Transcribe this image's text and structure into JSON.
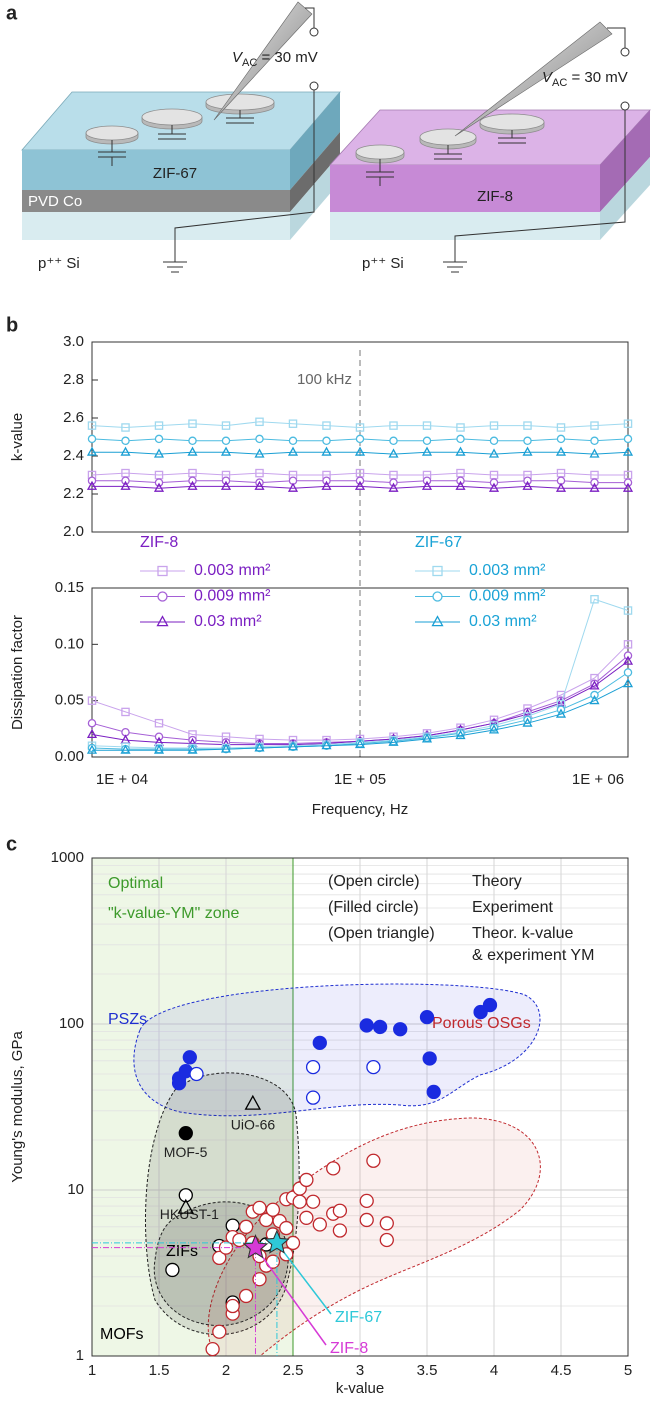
{
  "panel_a": {
    "label": "a",
    "left": {
      "voltage": {
        "symbol": "V",
        "subscript": "AC",
        "rest": " = 30 mV"
      },
      "film": "ZIF-67",
      "metal": "PVD Co",
      "substrate": "p⁺⁺ Si"
    },
    "right": {
      "voltage": {
        "symbol": "V",
        "subscript": "AC",
        "rest": " = 30 mV"
      },
      "film": "ZIF-8",
      "substrate": "p⁺⁺ Si"
    }
  },
  "chart_data": [
    {
      "type": "line",
      "panel_label": "b",
      "x": [
        10000,
        13335,
        17783,
        23714,
        31623,
        42170,
        56234,
        74989,
        100000,
        133352,
        177828,
        237137,
        316228,
        421697,
        562341,
        749894,
        1000000
      ],
      "xlim": [
        10000,
        1000000
      ],
      "log_x": true,
      "xticks": [
        {
          "value": 10000,
          "label": "1E + 04"
        },
        {
          "value": 100000,
          "label": "1E + 05"
        },
        {
          "value": 1000000,
          "label": "1E + 06"
        }
      ],
      "xlabel": "Frequency, Hz",
      "marker_line": {
        "x": 100000,
        "label": "100 kHz"
      },
      "k_axis": {
        "ylabel": "k-value",
        "ylim": [
          2,
          3
        ],
        "yticks": [
          {
            "value": 2,
            "label": "2.0"
          },
          2.2,
          2.4,
          2.6,
          2.8,
          {
            "value": 3,
            "label": "3.0"
          }
        ]
      },
      "df_axis": {
        "ylabel": "Dissipation factor",
        "ylim": [
          0,
          0.15
        ],
        "yticks": [
          {
            "value": 0,
            "label": "0.00"
          },
          0.05,
          {
            "value": 0.1,
            "label": "0.10"
          },
          0.15
        ]
      },
      "groups": [
        {
          "title": "ZIF-8",
          "color": "#7b1fc2",
          "series": [
            {
              "name": "0.003 mm²",
              "color": "#c9a3ec",
              "marker": "square",
              "k_values": [
                2.3,
                2.31,
                2.3,
                2.31,
                2.3,
                2.31,
                2.3,
                2.3,
                2.31,
                2.3,
                2.3,
                2.31,
                2.3,
                2.3,
                2.31,
                2.3,
                2.3
              ],
              "df_values": [
                0.05,
                0.04,
                0.03,
                0.02,
                0.018,
                0.016,
                0.015,
                0.015,
                0.016,
                0.018,
                0.021,
                0.026,
                0.033,
                0.043,
                0.055,
                0.07,
                0.1
              ]
            },
            {
              "name": "0.009 mm²",
              "color": "#a55fd6",
              "marker": "circle",
              "k_values": [
                2.27,
                2.27,
                2.26,
                2.27,
                2.27,
                2.26,
                2.27,
                2.27,
                2.27,
                2.26,
                2.27,
                2.27,
                2.26,
                2.27,
                2.27,
                2.26,
                2.26
              ],
              "df_values": [
                0.03,
                0.022,
                0.018,
                0.015,
                0.013,
                0.012,
                0.012,
                0.013,
                0.014,
                0.016,
                0.019,
                0.024,
                0.03,
                0.04,
                0.05,
                0.065,
                0.09
              ]
            },
            {
              "name": "0.03 mm²",
              "color": "#7b1fc2",
              "marker": "triangle",
              "k_values": [
                2.24,
                2.24,
                2.23,
                2.24,
                2.24,
                2.24,
                2.23,
                2.24,
                2.24,
                2.23,
                2.24,
                2.24,
                2.23,
                2.24,
                2.23,
                2.23,
                2.23
              ],
              "df_values": [
                0.02,
                0.015,
                0.013,
                0.012,
                0.011,
                0.011,
                0.011,
                0.012,
                0.014,
                0.016,
                0.019,
                0.024,
                0.03,
                0.038,
                0.048,
                0.063,
                0.085
              ]
            }
          ]
        },
        {
          "title": "ZIF-67",
          "color": "#1aa3d6",
          "series": [
            {
              "name": "0.003 mm²",
              "color": "#9fd9ef",
              "marker": "square",
              "k_values": [
                2.56,
                2.55,
                2.56,
                2.57,
                2.56,
                2.58,
                2.57,
                2.56,
                2.55,
                2.56,
                2.56,
                2.55,
                2.56,
                2.56,
                2.55,
                2.56,
                2.57
              ],
              "df_values": [
                0.01,
                0.009,
                0.008,
                0.008,
                0.008,
                0.009,
                0.01,
                0.011,
                0.013,
                0.015,
                0.018,
                0.022,
                0.028,
                0.036,
                0.047,
                0.14,
                0.13
              ]
            },
            {
              "name": "0.009 mm²",
              "color": "#4cbbe0",
              "marker": "circle",
              "k_values": [
                2.49,
                2.48,
                2.49,
                2.48,
                2.48,
                2.49,
                2.48,
                2.48,
                2.49,
                2.48,
                2.48,
                2.49,
                2.48,
                2.48,
                2.49,
                2.48,
                2.49
              ],
              "df_values": [
                0.008,
                0.007,
                0.007,
                0.007,
                0.007,
                0.008,
                0.009,
                0.01,
                0.012,
                0.014,
                0.017,
                0.021,
                0.026,
                0.033,
                0.042,
                0.055,
                0.075
              ]
            },
            {
              "name": "0.03 mm²",
              "color": "#1a9fd4",
              "marker": "triangle",
              "k_values": [
                2.42,
                2.42,
                2.41,
                2.42,
                2.42,
                2.41,
                2.42,
                2.42,
                2.42,
                2.41,
                2.42,
                2.42,
                2.41,
                2.42,
                2.42,
                2.41,
                2.42
              ],
              "df_values": [
                0.006,
                0.006,
                0.006,
                0.006,
                0.007,
                0.008,
                0.009,
                0.01,
                0.011,
                0.013,
                0.016,
                0.019,
                0.024,
                0.03,
                0.038,
                0.05,
                0.065
              ]
            }
          ]
        }
      ]
    },
    {
      "type": "scatter",
      "panel_label": "c",
      "xlabel": "k-value",
      "ylabel": "Young's modulus, GPa",
      "xlim": [
        1,
        5
      ],
      "xticks": [
        1,
        1.5,
        2,
        2.5,
        3,
        3.5,
        4,
        4.5,
        5
      ],
      "ylim": [
        1,
        1000
      ],
      "yticks": [
        1,
        10,
        100,
        1000
      ],
      "log_y": true,
      "grid": true,
      "zone": {
        "lines": [
          "Optimal",
          "\"k-value-YM\" zone"
        ],
        "xlim": [
          1,
          2.5
        ],
        "color": "#3d9a2b"
      },
      "marker_key": [
        {
          "marker": "(Open circle)",
          "meaning": [
            "Theory"
          ]
        },
        {
          "marker": "(Filled circle)",
          "meaning": [
            "Experiment"
          ]
        },
        {
          "marker": "(Open triangle)",
          "meaning": [
            "Theor. k-value",
            "& experiment YM"
          ]
        }
      ],
      "regions": [
        {
          "label": "PSZs",
          "color": "#1f2fd0"
        },
        {
          "label": "MOFs",
          "color": "#000000"
        },
        {
          "label": "ZIFs",
          "color": "#000000"
        },
        {
          "label": "Porous OSGs",
          "color": "#c0282d"
        }
      ],
      "series": [
        {
          "color": "#1a2be0",
          "marker": "circle",
          "filled": true,
          "x": [
            1.65,
            1.65,
            1.7,
            1.73,
            2.7,
            3.05,
            3.15,
            3.3,
            3.5,
            3.52,
            3.55,
            3.9,
            3.97
          ],
          "y": [
            44,
            47,
            52,
            63,
            77,
            98,
            96,
            93,
            110,
            62,
            39,
            118,
            130
          ]
        },
        {
          "color": "#1a2be0",
          "marker": "circle",
          "filled": false,
          "x": [
            1.78,
            2.65,
            2.65,
            3.1
          ],
          "y": [
            50,
            55,
            36,
            55
          ]
        },
        {
          "color": "#000000",
          "marker": "circle",
          "filled": true,
          "x": [
            1.7
          ],
          "y": [
            22
          ],
          "labels": [
            "MOF-5"
          ]
        },
        {
          "color": "#000000",
          "marker": "circle",
          "filled": false,
          "x": [
            1.7
          ],
          "y": [
            9.3
          ],
          "labels": [
            "HKUST-1"
          ]
        },
        {
          "color": "#000000",
          "marker": "triangle",
          "filled": false,
          "x": [
            2.2,
            1.7
          ],
          "y": [
            33,
            7.8
          ],
          "labels": [
            "UiO-66",
            null
          ]
        },
        {
          "color": "#000000",
          "marker": "circle",
          "filled": false,
          "x": [
            1.6,
            1.95,
            2.05,
            2.05,
            2.3
          ],
          "y": [
            3.3,
            4.6,
            6.1,
            2.1,
            4.7
          ]
        },
        {
          "color": "#c0282d",
          "marker": "circle",
          "filled": false,
          "x": [
            1.9,
            1.95,
            2.05,
            2.05,
            2.15,
            2.25,
            2.3,
            2.35,
            1.95,
            2.0,
            2.05,
            2.1,
            2.15,
            2.2,
            2.25,
            2.3,
            2.35,
            2.4,
            2.45,
            2.35,
            2.45,
            2.5,
            2.55,
            2.6,
            2.55,
            2.45,
            2.5,
            2.6,
            2.65,
            2.7,
            2.8,
            2.85,
            2.85,
            2.8,
            3.1,
            3.05,
            3.05,
            3.2,
            3.2,
            2.25,
            2.2
          ],
          "y": [
            1.1,
            1.4,
            1.8,
            2.0,
            2.3,
            2.9,
            3.5,
            3.7,
            3.9,
            4.5,
            5.2,
            5.0,
            6.0,
            7.4,
            7.8,
            6.6,
            5.4,
            6.5,
            5.9,
            7.6,
            8.8,
            9.0,
            10.2,
            11.5,
            8.5,
            4.1,
            4.8,
            6.8,
            8.5,
            6.2,
            7.2,
            7.5,
            5.7,
            13.5,
            15,
            8.6,
            6.6,
            6.3,
            5.0,
            4.0,
            4.8
          ]
        },
        {
          "name": "ZIF-8",
          "color": "#d63ad6",
          "marker": "star",
          "filled": true,
          "x": [
            2.22
          ],
          "y": [
            4.5
          ]
        },
        {
          "name": "ZIF-67",
          "color": "#2ec8d8",
          "marker": "star",
          "filled": true,
          "x": [
            2.38
          ],
          "y": [
            4.8
          ]
        }
      ]
    }
  ]
}
